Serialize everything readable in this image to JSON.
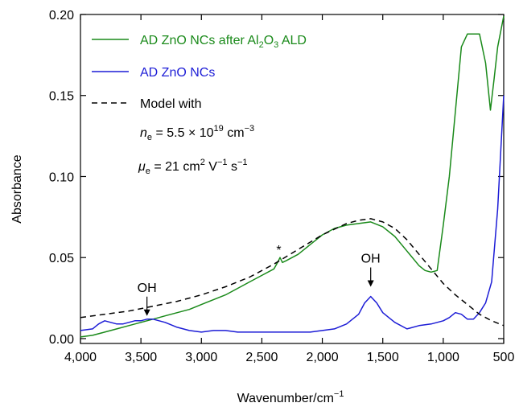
{
  "chart_data": {
    "type": "line",
    "xlabel": "Wavenumber/cm",
    "xlabel_sup": "−1",
    "ylabel": "Absorbance",
    "xlim": [
      4000,
      500
    ],
    "ylim": [
      -0.003,
      0.2
    ],
    "x_reversed": true,
    "x_ticks": [
      4000,
      3500,
      3000,
      2500,
      2000,
      1500,
      1000,
      500
    ],
    "x_tick_labels": [
      "4,000",
      "3,500",
      "3,000",
      "2,500",
      "2,000",
      "1,500",
      "1,000",
      "500"
    ],
    "y_ticks": [
      0.0,
      0.05,
      0.1,
      0.15,
      0.2
    ],
    "y_tick_labels": [
      "0.00",
      "0.05",
      "0.10",
      "0.15",
      "0.20"
    ],
    "grid": false,
    "legend_position": "top-left",
    "series": [
      {
        "name": "AD ZnO NCs after Al2O3 ALD",
        "color": "#1a8a1a",
        "style": "solid",
        "points": [
          [
            4000,
            0.001
          ],
          [
            3900,
            0.002
          ],
          [
            3800,
            0.004
          ],
          [
            3700,
            0.006
          ],
          [
            3600,
            0.008
          ],
          [
            3500,
            0.01
          ],
          [
            3400,
            0.012
          ],
          [
            3300,
            0.014
          ],
          [
            3200,
            0.016
          ],
          [
            3100,
            0.018
          ],
          [
            3000,
            0.021
          ],
          [
            2900,
            0.024
          ],
          [
            2800,
            0.027
          ],
          [
            2700,
            0.031
          ],
          [
            2600,
            0.035
          ],
          [
            2500,
            0.039
          ],
          [
            2400,
            0.043
          ],
          [
            2370,
            0.047
          ],
          [
            2350,
            0.05
          ],
          [
            2330,
            0.047
          ],
          [
            2300,
            0.048
          ],
          [
            2200,
            0.052
          ],
          [
            2100,
            0.058
          ],
          [
            2000,
            0.064
          ],
          [
            1900,
            0.068
          ],
          [
            1800,
            0.07
          ],
          [
            1700,
            0.071
          ],
          [
            1600,
            0.072
          ],
          [
            1500,
            0.069
          ],
          [
            1400,
            0.063
          ],
          [
            1300,
            0.054
          ],
          [
            1200,
            0.045
          ],
          [
            1150,
            0.042
          ],
          [
            1100,
            0.041
          ],
          [
            1050,
            0.042
          ],
          [
            1000,
            0.07
          ],
          [
            950,
            0.1
          ],
          [
            900,
            0.14
          ],
          [
            850,
            0.18
          ],
          [
            800,
            0.188
          ],
          [
            750,
            0.188
          ],
          [
            700,
            0.188
          ],
          [
            650,
            0.17
          ],
          [
            610,
            0.141
          ],
          [
            580,
            0.16
          ],
          [
            550,
            0.18
          ],
          [
            500,
            0.199
          ]
        ]
      },
      {
        "name": "AD ZnO NCs",
        "color": "#1c1cd6",
        "style": "solid",
        "points": [
          [
            4000,
            0.005
          ],
          [
            3900,
            0.006
          ],
          [
            3850,
            0.009
          ],
          [
            3800,
            0.011
          ],
          [
            3750,
            0.01
          ],
          [
            3700,
            0.009
          ],
          [
            3650,
            0.009
          ],
          [
            3600,
            0.01
          ],
          [
            3550,
            0.011
          ],
          [
            3500,
            0.011
          ],
          [
            3450,
            0.012
          ],
          [
            3400,
            0.012
          ],
          [
            3300,
            0.01
          ],
          [
            3200,
            0.007
          ],
          [
            3100,
            0.005
          ],
          [
            3000,
            0.004
          ],
          [
            2900,
            0.005
          ],
          [
            2800,
            0.005
          ],
          [
            2700,
            0.004
          ],
          [
            2600,
            0.004
          ],
          [
            2500,
            0.004
          ],
          [
            2400,
            0.004
          ],
          [
            2300,
            0.004
          ],
          [
            2200,
            0.004
          ],
          [
            2100,
            0.004
          ],
          [
            2000,
            0.005
          ],
          [
            1900,
            0.006
          ],
          [
            1800,
            0.009
          ],
          [
            1700,
            0.015
          ],
          [
            1650,
            0.022
          ],
          [
            1600,
            0.026
          ],
          [
            1550,
            0.022
          ],
          [
            1500,
            0.016
          ],
          [
            1450,
            0.013
          ],
          [
            1400,
            0.01
          ],
          [
            1300,
            0.006
          ],
          [
            1200,
            0.008
          ],
          [
            1100,
            0.009
          ],
          [
            1000,
            0.011
          ],
          [
            950,
            0.013
          ],
          [
            900,
            0.016
          ],
          [
            850,
            0.015
          ],
          [
            800,
            0.012
          ],
          [
            750,
            0.012
          ],
          [
            700,
            0.016
          ],
          [
            650,
            0.022
          ],
          [
            600,
            0.035
          ],
          [
            550,
            0.08
          ],
          [
            500,
            0.15
          ]
        ]
      },
      {
        "name": "Model with",
        "color": "#000000",
        "style": "dashed",
        "points": [
          [
            4000,
            0.013
          ],
          [
            3800,
            0.015
          ],
          [
            3600,
            0.017
          ],
          [
            3400,
            0.02
          ],
          [
            3200,
            0.023
          ],
          [
            3000,
            0.027
          ],
          [
            2800,
            0.032
          ],
          [
            2600,
            0.038
          ],
          [
            2400,
            0.046
          ],
          [
            2200,
            0.055
          ],
          [
            2000,
            0.064
          ],
          [
            1800,
            0.071
          ],
          [
            1700,
            0.073
          ],
          [
            1600,
            0.074
          ],
          [
            1500,
            0.072
          ],
          [
            1400,
            0.068
          ],
          [
            1300,
            0.061
          ],
          [
            1200,
            0.052
          ],
          [
            1100,
            0.043
          ],
          [
            1000,
            0.034
          ],
          [
            900,
            0.027
          ],
          [
            800,
            0.021
          ],
          [
            700,
            0.015
          ],
          [
            600,
            0.011
          ],
          [
            500,
            0.008
          ]
        ]
      }
    ],
    "legend": {
      "green_main": "AD ZnO NCs after Al",
      "green_sub1": "2",
      "green_mid": "O",
      "green_sub2": "3",
      "green_end": " ALD",
      "blue": "AD ZnO NCs",
      "dashed": "Model with",
      "ne_label": "n",
      "ne_sub": "e",
      "ne_value": " = 5.5 × 10",
      "ne_exp": "19",
      "ne_unit": " cm",
      "ne_unit_exp": "−3",
      "mu_label": "μ",
      "mu_sub": "e",
      "mu_value": " = 21 cm",
      "mu_exp1": "2",
      "mu_v": " V",
      "mu_exp2": "−1",
      "mu_s": " s",
      "mu_exp3": "−1"
    },
    "annotations": [
      {
        "text": "OH",
        "x": 3450,
        "y": 0.012
      },
      {
        "text": "OH",
        "x": 1600,
        "y": 0.03
      },
      {
        "text": "*",
        "x": 2360,
        "y": 0.051
      }
    ]
  }
}
